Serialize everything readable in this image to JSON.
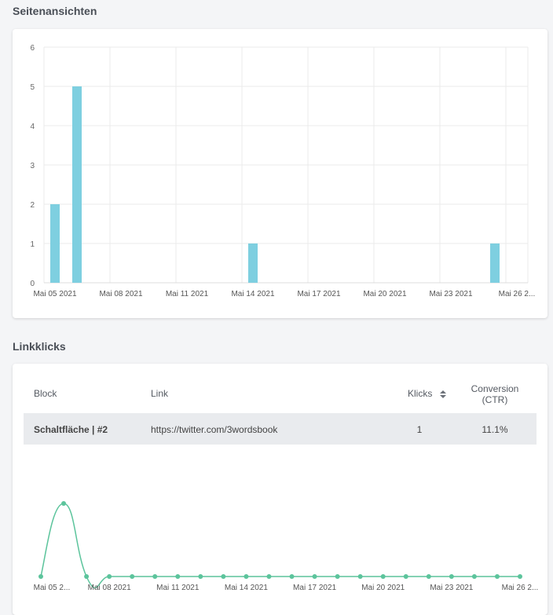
{
  "views_section": {
    "title": "Seitenansichten"
  },
  "clicks_section": {
    "title": "Linkklicks"
  },
  "table": {
    "headers": {
      "block": "Block",
      "link": "Link",
      "clicks": "Klicks",
      "conversion_line1": "Conversion",
      "conversion_line2": "(CTR)"
    },
    "rows": [
      {
        "block": "Schaltfläche | #2",
        "link": "https://twitter.com/3wordsbook",
        "clicks": "1",
        "conversion": "11.1%"
      }
    ]
  },
  "chart_data": [
    {
      "type": "bar",
      "title": "Seitenansichten",
      "color": "#7ecfe0",
      "ylim": [
        0,
        6
      ],
      "yticks": [
        0,
        1,
        2,
        3,
        4,
        5,
        6
      ],
      "x_tick_labels": [
        "Mai 05 2021",
        "Mai 08 2021",
        "Mai 11 2021",
        "Mai 14 2021",
        "Mai 17 2021",
        "Mai 20 2021",
        "Mai 23 2021",
        "Mai 26 2..."
      ],
      "categories": [
        "Mai 05 2021",
        "Mai 06 2021",
        "Mai 07 2021",
        "Mai 08 2021",
        "Mai 09 2021",
        "Mai 10 2021",
        "Mai 11 2021",
        "Mai 12 2021",
        "Mai 13 2021",
        "Mai 14 2021",
        "Mai 15 2021",
        "Mai 16 2021",
        "Mai 17 2021",
        "Mai 18 2021",
        "Mai 19 2021",
        "Mai 20 2021",
        "Mai 21 2021",
        "Mai 22 2021",
        "Mai 23 2021",
        "Mai 24 2021",
        "Mai 25 2021",
        "Mai 26 2021"
      ],
      "values": [
        2,
        5,
        0,
        0,
        0,
        0,
        0,
        0,
        0,
        1,
        0,
        0,
        0,
        0,
        0,
        0,
        0,
        0,
        0,
        0,
        1,
        0
      ],
      "grid": true
    },
    {
      "type": "line",
      "title": "Linkklicks",
      "color": "#5cc49c",
      "x_tick_labels": [
        "Mai 05 2...",
        "Mai 08 2021",
        "Mai 11 2021",
        "Mai 14 2021",
        "Mai 17 2021",
        "Mai 20 2021",
        "Mai 23 2021",
        "Mai 26 2..."
      ],
      "categories": [
        "Mai 05 2021",
        "Mai 06 2021",
        "Mai 07 2021",
        "Mai 08 2021",
        "Mai 09 2021",
        "Mai 10 2021",
        "Mai 11 2021",
        "Mai 12 2021",
        "Mai 13 2021",
        "Mai 14 2021",
        "Mai 15 2021",
        "Mai 16 2021",
        "Mai 17 2021",
        "Mai 18 2021",
        "Mai 19 2021",
        "Mai 20 2021",
        "Mai 21 2021",
        "Mai 22 2021",
        "Mai 23 2021",
        "Mai 24 2021",
        "Mai 25 2021",
        "Mai 26 2021"
      ],
      "values": [
        0,
        1,
        0,
        0,
        0,
        0,
        0,
        0,
        0,
        0,
        0,
        0,
        0,
        0,
        0,
        0,
        0,
        0,
        0,
        0,
        0,
        0
      ],
      "grid": false
    }
  ]
}
